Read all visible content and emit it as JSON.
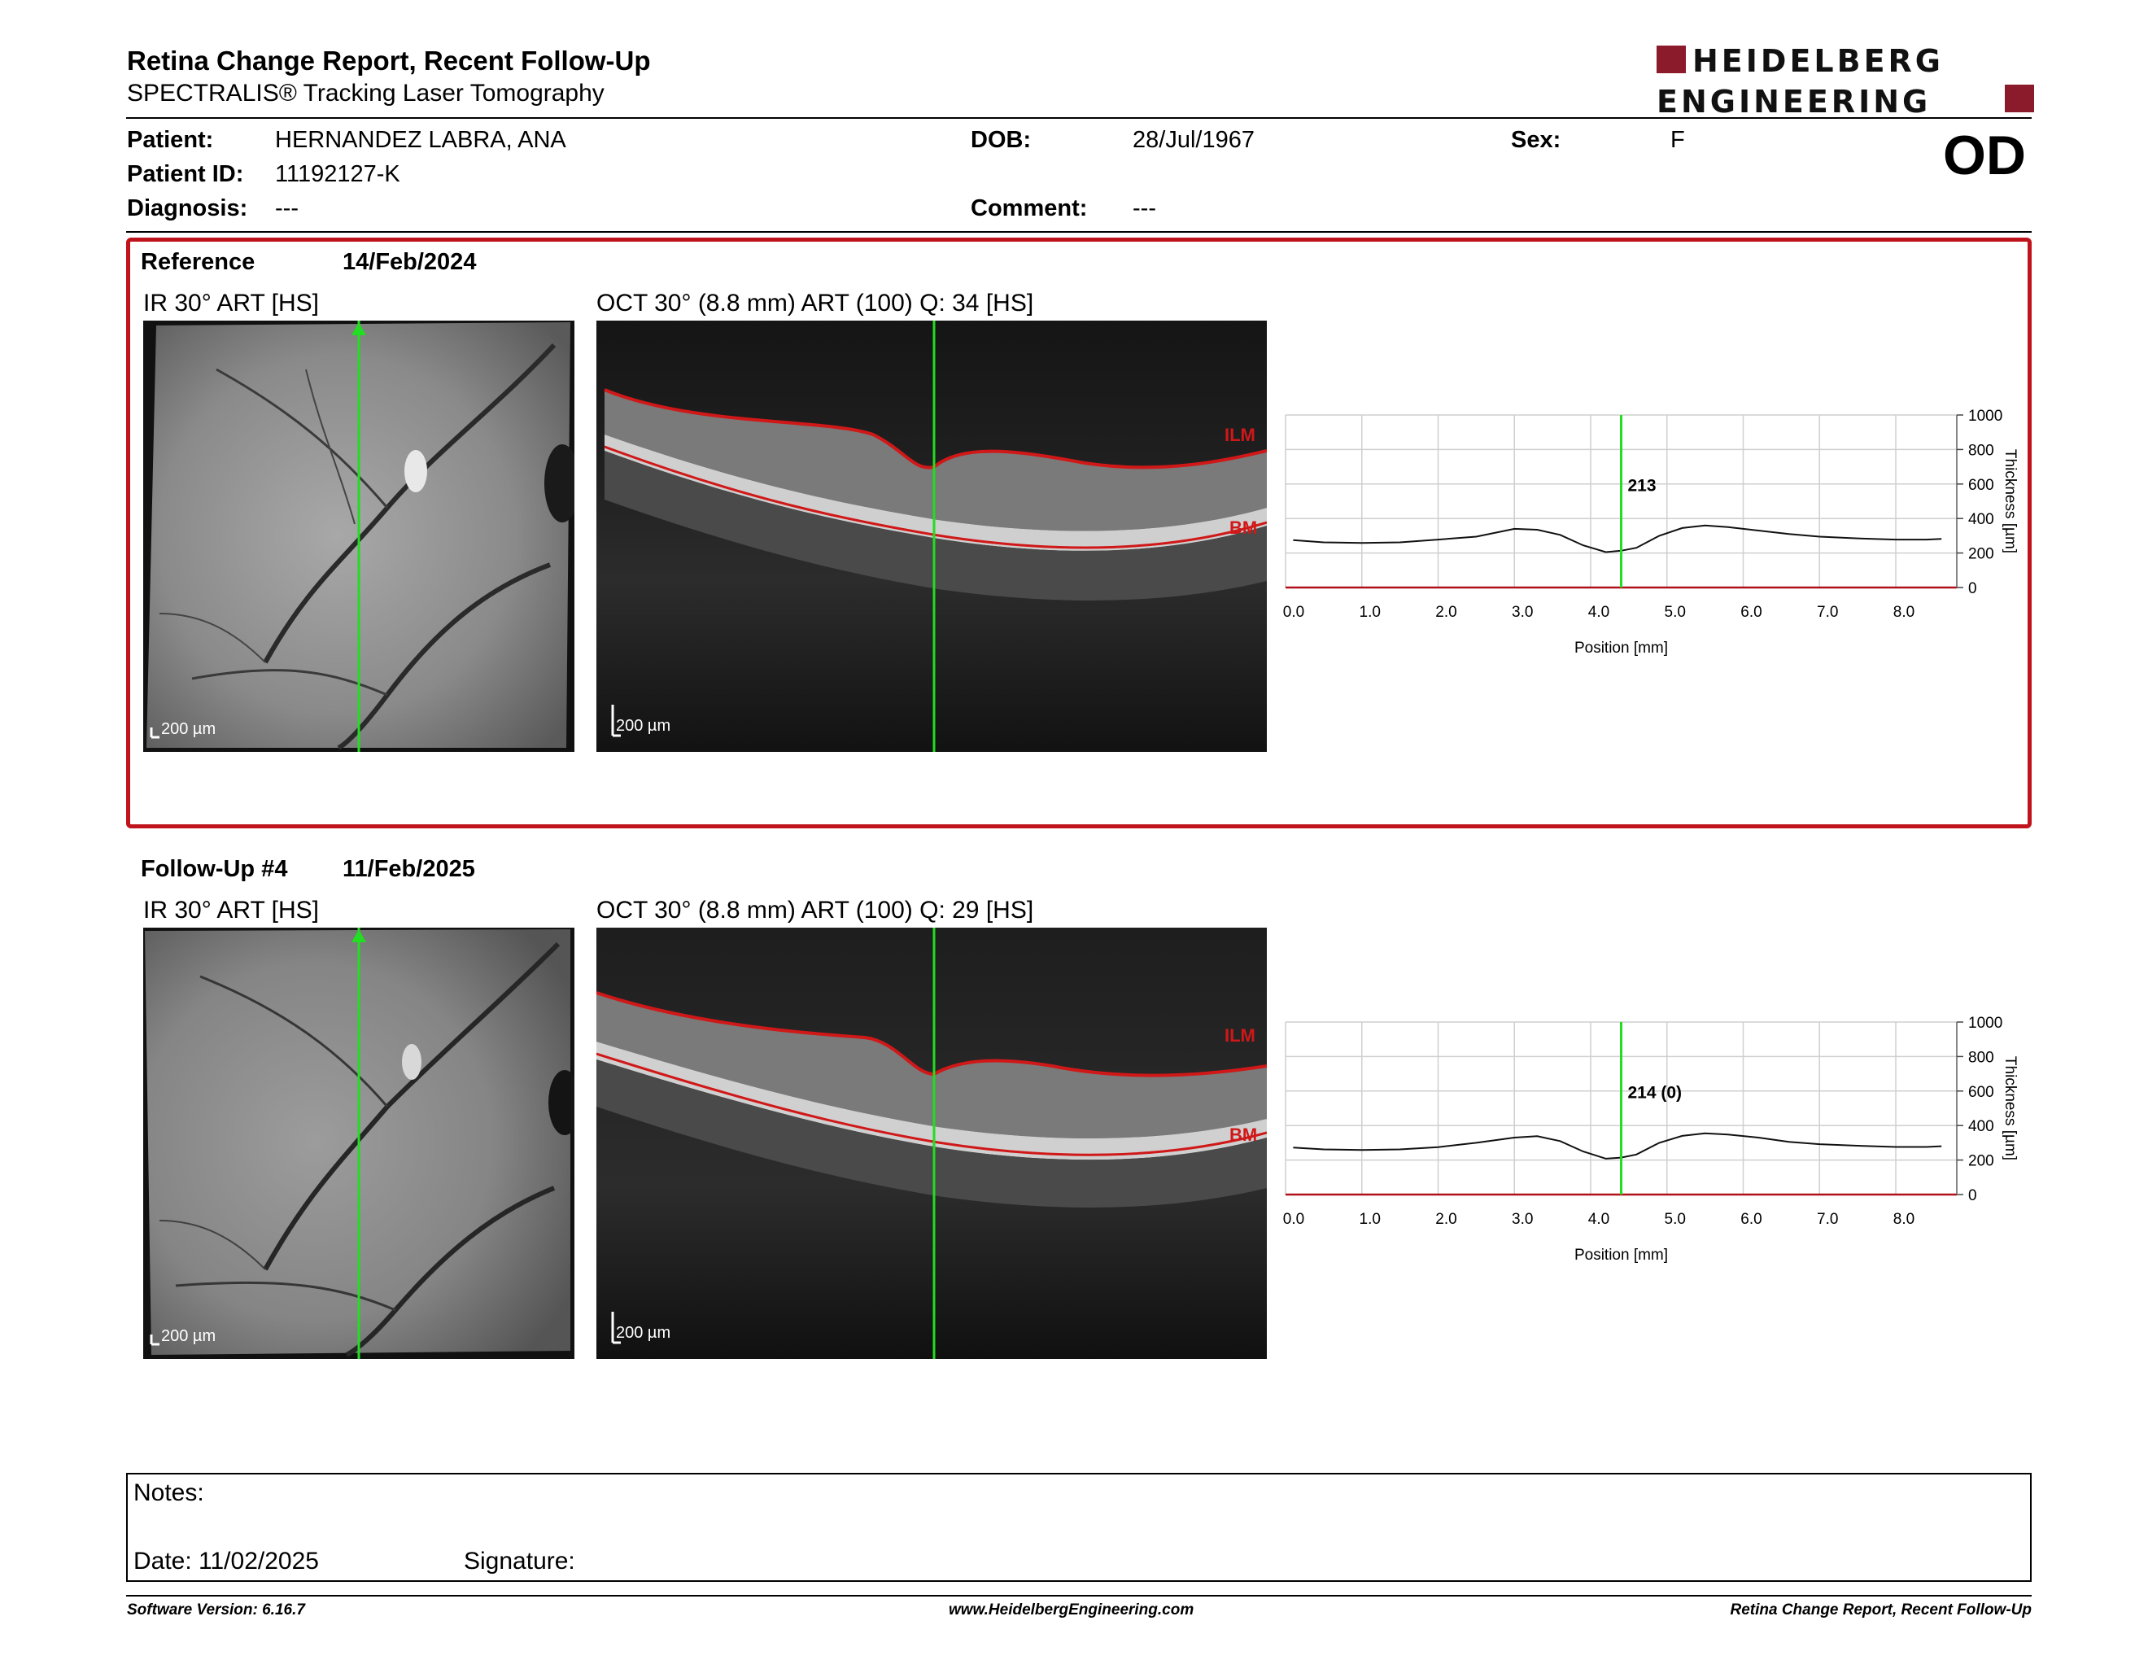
{
  "header": {
    "title": "Retina Change Report, Recent Follow-Up",
    "subtitle": "SPECTRALIS® Tracking Laser Tomography",
    "logo_line1": "HEIDELBERG",
    "logo_line2": "ENGINEERING",
    "eye": "OD"
  },
  "patient": {
    "patient_label": "Patient:",
    "patient_value": "HERNANDEZ LABRA, ANA",
    "id_label": "Patient ID:",
    "id_value": "11192127-K",
    "diagnosis_label": "Diagnosis:",
    "diagnosis_value": "---",
    "dob_label": "DOB:",
    "dob_value": "28/Jul/1967",
    "comment_label": "Comment:",
    "comment_value": "---",
    "sex_label": "Sex:",
    "sex_value": "F"
  },
  "exams": [
    {
      "label": "Reference",
      "date": "14/Feb/2024",
      "ir_label": "IR 30° ART [HS]",
      "oct_label": "OCT 30° (8.8 mm) ART (100) Q: 34 [HS]",
      "scale": "200 µm",
      "ilm": "ILM",
      "bm": "BM",
      "thickness_value": "213"
    },
    {
      "label": "Follow-Up #4",
      "date": "11/Feb/2025",
      "ir_label": "IR 30° ART [HS]",
      "oct_label": "OCT 30° (8.8 mm) ART (100) Q: 29 [HS]",
      "scale": "200 µm",
      "ilm": "ILM",
      "bm": "BM",
      "thickness_value": "214 (0)"
    }
  ],
  "chart_data": [
    {
      "type": "line",
      "xlabel": "Position [mm]",
      "ylabel": "Thickness [µm]",
      "xlim": [
        0.0,
        8.8
      ],
      "ylim": [
        0,
        1000
      ],
      "x_ticks": [
        "0.0",
        "1.0",
        "2.0",
        "3.0",
        "4.0",
        "5.0",
        "6.0",
        "7.0",
        "8.0"
      ],
      "y_ticks": [
        "0",
        "200",
        "400",
        "600",
        "800",
        "1000"
      ],
      "cursor_x": 4.4,
      "cursor_label": "213",
      "x": [
        0.1,
        0.5,
        1.0,
        1.5,
        2.0,
        2.5,
        3.0,
        3.3,
        3.6,
        3.9,
        4.2,
        4.4,
        4.6,
        4.9,
        5.2,
        5.5,
        5.8,
        6.2,
        6.6,
        7.0,
        7.5,
        8.0,
        8.4,
        8.6
      ],
      "y": [
        275,
        262,
        258,
        262,
        278,
        295,
        340,
        335,
        305,
        245,
        205,
        213,
        230,
        300,
        345,
        360,
        350,
        330,
        310,
        295,
        285,
        278,
        278,
        282
      ]
    },
    {
      "type": "line",
      "xlabel": "Position [mm]",
      "ylabel": "Thickness [µm]",
      "xlim": [
        0.0,
        8.8
      ],
      "ylim": [
        0,
        1000
      ],
      "x_ticks": [
        "0.0",
        "1.0",
        "2.0",
        "3.0",
        "4.0",
        "5.0",
        "6.0",
        "7.0",
        "8.0"
      ],
      "y_ticks": [
        "0",
        "200",
        "400",
        "600",
        "800",
        "1000"
      ],
      "cursor_x": 4.4,
      "cursor_label": "214 (0)",
      "x": [
        0.1,
        0.5,
        1.0,
        1.5,
        2.0,
        2.5,
        3.0,
        3.3,
        3.6,
        3.9,
        4.2,
        4.4,
        4.6,
        4.9,
        5.2,
        5.5,
        5.8,
        6.2,
        6.6,
        7.0,
        7.5,
        8.0,
        8.4,
        8.6
      ],
      "y": [
        272,
        262,
        258,
        262,
        275,
        300,
        330,
        338,
        310,
        250,
        208,
        214,
        232,
        300,
        340,
        355,
        348,
        330,
        305,
        292,
        283,
        276,
        276,
        280
      ]
    }
  ],
  "notes": {
    "notes_label": "Notes:",
    "date_line": "Date: 11/02/2025",
    "signature_label": "Signature:"
  },
  "footer": {
    "left": "Software Version: 6.16.7",
    "center": "www.HeidelbergEngineering.com",
    "right": "Retina Change Report, Recent Follow-Up"
  },
  "colors": {
    "accent_red": "#c0141c",
    "cursor_green": "#22dd22",
    "layer_red": "#d01818"
  }
}
